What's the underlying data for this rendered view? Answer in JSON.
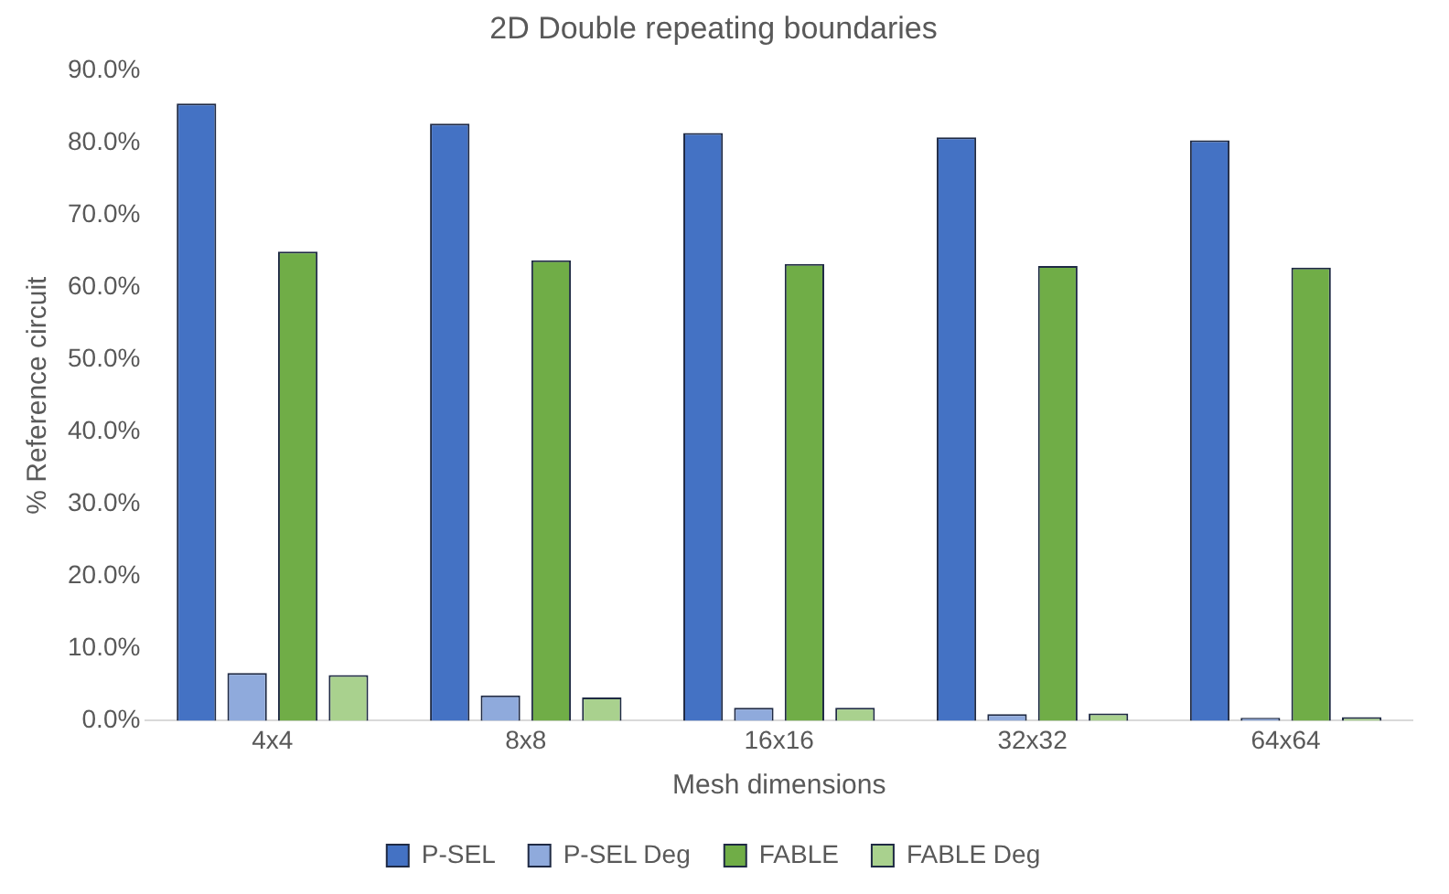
{
  "chart_data": {
    "type": "bar",
    "title": "2D Double repeating boundaries",
    "xlabel": "Mesh dimensions",
    "ylabel": "% Reference circuit",
    "categories": [
      "4x4",
      "8x8",
      "16x16",
      "32x32",
      "64x64"
    ],
    "series": [
      {
        "name": "P-SEL",
        "color": "#4472c4",
        "values": [
          85.4,
          82.6,
          81.3,
          80.7,
          80.3
        ]
      },
      {
        "name": "P-SEL Deg",
        "color": "#8faadc",
        "values": [
          6.6,
          3.5,
          1.8,
          0.9,
          0.4
        ]
      },
      {
        "name": "FABLE",
        "color": "#70ad47",
        "values": [
          64.9,
          63.7,
          63.2,
          62.9,
          62.7
        ]
      },
      {
        "name": "FABLE Deg",
        "color": "#a9d18e",
        "values": [
          6.3,
          3.2,
          1.8,
          1.0,
          0.5
        ]
      }
    ],
    "ylim": [
      0,
      90
    ],
    "yticks": [
      {
        "value": 0,
        "label": "0.0%"
      },
      {
        "value": 10,
        "label": "10.0%"
      },
      {
        "value": 20,
        "label": "20.0%"
      },
      {
        "value": 30,
        "label": "30.0%"
      },
      {
        "value": 40,
        "label": "40.0%"
      },
      {
        "value": 50,
        "label": "50.0%"
      },
      {
        "value": 60,
        "label": "60.0%"
      },
      {
        "value": 70,
        "label": "70.0%"
      },
      {
        "value": 80,
        "label": "80.0%"
      },
      {
        "value": 90,
        "label": "90.0%"
      }
    ],
    "grid": false,
    "legend": "bottom"
  }
}
